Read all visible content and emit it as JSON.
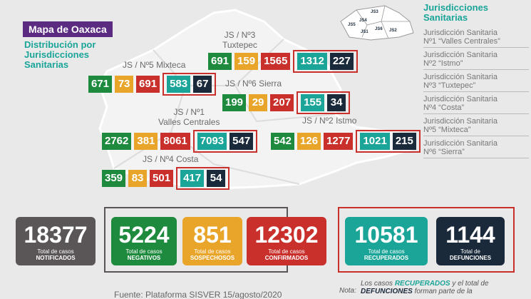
{
  "header": {
    "title": "Mapa de Oaxaca",
    "subtitle": [
      "Distribución por",
      "Jurisdicciones",
      "Sanitarias"
    ]
  },
  "minimap": {
    "labels": [
      "JS3",
      "JS5",
      "JS1",
      "JS6",
      "JS2",
      "JS4"
    ]
  },
  "regions": [
    {
      "label": [
        "JS / Nº3",
        "Tuxtepec"
      ],
      "values": [
        691,
        159,
        1565,
        1312,
        227
      ]
    },
    {
      "label": [
        "JS / Nº5 Mixteca"
      ],
      "values": [
        671,
        73,
        691,
        583,
        67
      ]
    },
    {
      "label": [
        "JS / Nº6 Sierra"
      ],
      "values": [
        199,
        29,
        207,
        155,
        34
      ]
    },
    {
      "label": [
        "JS / Nº1",
        "Valles Centrales"
      ],
      "values": [
        2762,
        381,
        8061,
        7093,
        547
      ]
    },
    {
      "label": [
        "JS / Nº2 Istmo"
      ],
      "values": [
        542,
        126,
        1277,
        1021,
        215
      ]
    },
    {
      "label": [
        "JS / Nº4 Costa"
      ],
      "values": [
        359,
        83,
        501,
        417,
        54
      ]
    }
  ],
  "legend": {
    "title": [
      "Jurisdicciones",
      "Sanitarias"
    ],
    "items": [
      [
        "Jurisdicción Sanitaria",
        "Nº1 “Valles Centrales”"
      ],
      [
        "Jurisdicción Sanitaria",
        "Nº2 “Istmo”"
      ],
      [
        "Jurisdicción Sanitaria",
        "Nº3 “Tuxtepec”"
      ],
      [
        "Jurisdicción Sanitaria",
        "Nº4 “Costa”"
      ],
      [
        "Jurisdicción Sanitaria",
        "Nº5 “Mixteca”"
      ],
      [
        "Jurisdicción Sanitaria",
        "Nº6 “Sierra”"
      ]
    ]
  },
  "totals": [
    {
      "value": 18377,
      "caption": "Total de casos",
      "label": "NOTIFICADOS"
    },
    {
      "value": 5224,
      "caption": "Total de casos",
      "label": "NEGATIVOS"
    },
    {
      "value": 851,
      "caption": "Total de casos",
      "label": "SOSPECHOSOS"
    },
    {
      "value": 12302,
      "caption": "Total de casos",
      "label": "CONFIRMADOS"
    },
    {
      "value": 10581,
      "caption": "Total de casos",
      "label": "RECUPERADOS"
    },
    {
      "value": 1144,
      "caption": "Total de",
      "label": "DEFUNCIONES"
    }
  ],
  "footer": {
    "source": "Fuente: Plataforma SISVER 15/agosto/2020",
    "note_label": "Nota:",
    "note": [
      "Los casos ",
      "RECUPERADOS",
      " y el total de",
      "DEFUNCIONES",
      " forman parte de la"
    ]
  }
}
